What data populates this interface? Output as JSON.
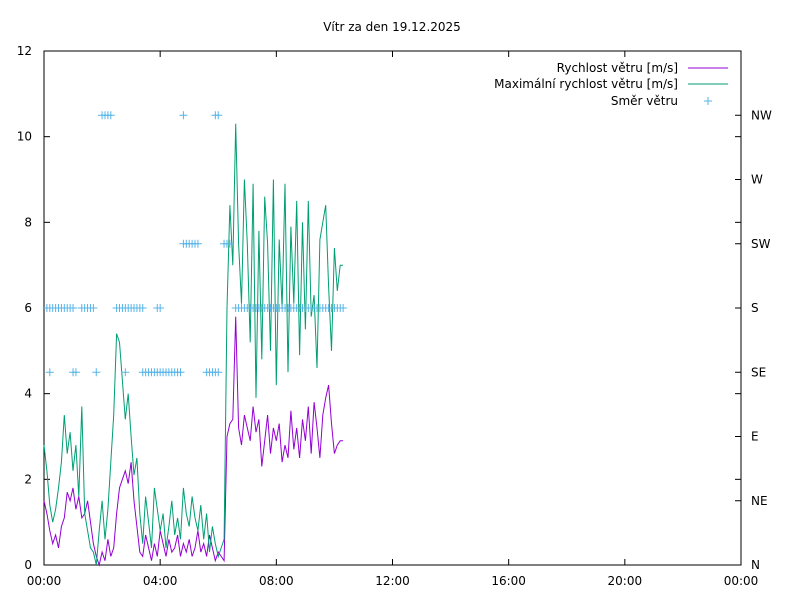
{
  "chart_data": {
    "type": "line",
    "title": "Vítr za den 19.12.2025",
    "x_ticks": [
      "00:00",
      "04:00",
      "08:00",
      "12:00",
      "16:00",
      "20:00",
      "00:00"
    ],
    "y_ticks": [
      "0",
      "2",
      "4",
      "6",
      "8",
      "10",
      "12"
    ],
    "y2_ticks": [
      "N",
      "NE",
      "E",
      "SE",
      "S",
      "SW",
      "W",
      "NW"
    ],
    "ylim": [
      0,
      12
    ],
    "xlim_hours": [
      0,
      24
    ],
    "grid": false,
    "legend_position": "top-right",
    "colors": {
      "speed": "#9400d3",
      "max": "#009e73",
      "dir": "#56b4e9"
    },
    "series": [
      {
        "name": "Rychlost větru [m/s]",
        "style": "line",
        "x": [
          0.0,
          0.1,
          0.2,
          0.3,
          0.4,
          0.5,
          0.6,
          0.7,
          0.8,
          0.9,
          1.0,
          1.1,
          1.2,
          1.3,
          1.4,
          1.5,
          1.6,
          1.7,
          1.8,
          1.9,
          2.0,
          2.1,
          2.2,
          2.3,
          2.4,
          2.5,
          2.6,
          2.7,
          2.8,
          2.9,
          3.0,
          3.1,
          3.2,
          3.3,
          3.4,
          3.5,
          3.6,
          3.7,
          3.8,
          3.9,
          4.0,
          4.1,
          4.2,
          4.3,
          4.4,
          4.5,
          4.6,
          4.7,
          4.8,
          4.9,
          5.0,
          5.1,
          5.2,
          5.3,
          5.4,
          5.5,
          5.6,
          5.7,
          5.8,
          5.9,
          6.0,
          6.1,
          6.2,
          6.3,
          6.4,
          6.5,
          6.6,
          6.7,
          6.8,
          6.9,
          7.0,
          7.1,
          7.2,
          7.3,
          7.4,
          7.5,
          7.6,
          7.7,
          7.8,
          7.9,
          8.0,
          8.1,
          8.2,
          8.3,
          8.4,
          8.5,
          8.6,
          8.7,
          8.8,
          8.9,
          9.0,
          9.1,
          9.2,
          9.3,
          9.4,
          9.5,
          9.6,
          9.7,
          9.8,
          9.9,
          10.0,
          10.1,
          10.2,
          10.3
        ],
        "values": [
          1.5,
          1.2,
          0.8,
          0.5,
          0.7,
          0.4,
          0.9,
          1.1,
          1.7,
          1.5,
          1.8,
          1.3,
          1.6,
          1.1,
          1.2,
          1.5,
          1.0,
          0.5,
          0.2,
          0.0,
          0.3,
          0.1,
          0.6,
          0.2,
          0.4,
          1.2,
          1.8,
          2.0,
          2.2,
          1.9,
          2.4,
          1.5,
          0.9,
          0.3,
          0.2,
          0.7,
          0.4,
          0.1,
          0.5,
          0.2,
          0.8,
          0.5,
          0.2,
          0.6,
          0.3,
          0.4,
          0.7,
          0.2,
          0.5,
          0.3,
          0.6,
          0.2,
          0.4,
          0.8,
          0.3,
          0.5,
          0.2,
          0.7,
          0.4,
          0.1,
          0.3,
          0.2,
          0.1,
          3.0,
          3.3,
          3.4,
          5.8,
          3.2,
          2.8,
          3.5,
          3.2,
          2.9,
          3.7,
          3.1,
          3.4,
          2.3,
          2.9,
          3.5,
          2.6,
          3.2,
          2.9,
          3.3,
          2.4,
          2.8,
          2.5,
          3.6,
          2.7,
          3.2,
          2.5,
          3.4,
          2.9,
          3.7,
          2.6,
          3.8,
          3.2,
          2.5,
          3.5,
          3.9,
          4.2,
          3.3,
          2.6,
          2.8,
          2.9,
          2.9
        ]
      },
      {
        "name": "Maximální rychlost větru [m/s]",
        "style": "line",
        "x": [
          0.0,
          0.1,
          0.2,
          0.3,
          0.4,
          0.5,
          0.6,
          0.7,
          0.8,
          0.9,
          1.0,
          1.1,
          1.2,
          1.3,
          1.4,
          1.5,
          1.6,
          1.7,
          1.8,
          1.9,
          2.0,
          2.1,
          2.2,
          2.3,
          2.4,
          2.5,
          2.6,
          2.7,
          2.8,
          2.9,
          3.0,
          3.1,
          3.2,
          3.3,
          3.4,
          3.5,
          3.6,
          3.7,
          3.8,
          3.9,
          4.0,
          4.1,
          4.2,
          4.3,
          4.4,
          4.5,
          4.6,
          4.7,
          4.8,
          4.9,
          5.0,
          5.1,
          5.2,
          5.3,
          5.4,
          5.5,
          5.6,
          5.7,
          5.8,
          5.9,
          6.0,
          6.1,
          6.2,
          6.3,
          6.4,
          6.5,
          6.6,
          6.7,
          6.8,
          6.9,
          7.0,
          7.1,
          7.2,
          7.3,
          7.4,
          7.5,
          7.6,
          7.7,
          7.8,
          7.9,
          8.0,
          8.1,
          8.2,
          8.3,
          8.4,
          8.5,
          8.6,
          8.7,
          8.8,
          8.9,
          9.0,
          9.1,
          9.2,
          9.3,
          9.4,
          9.5,
          9.6,
          9.7,
          9.8,
          9.9,
          10.0,
          10.1,
          10.2,
          10.3
        ],
        "values": [
          2.8,
          2.2,
          1.4,
          1.0,
          1.3,
          1.8,
          2.4,
          3.5,
          2.6,
          3.1,
          2.2,
          2.8,
          1.6,
          3.7,
          1.2,
          0.8,
          0.4,
          0.3,
          0.0,
          0.8,
          1.5,
          0.6,
          1.3,
          2.4,
          3.5,
          5.4,
          5.2,
          4.3,
          3.4,
          4.0,
          3.0,
          2.1,
          2.5,
          1.2,
          0.5,
          1.6,
          1.0,
          0.4,
          1.8,
          1.3,
          0.8,
          1.2,
          0.4,
          0.9,
          1.5,
          0.7,
          1.1,
          0.6,
          1.8,
          1.2,
          0.9,
          1.6,
          1.1,
          0.8,
          1.4,
          0.6,
          1.2,
          0.3,
          0.9,
          0.5,
          0.2,
          0.4,
          0.6,
          6.0,
          8.4,
          7.0,
          10.3,
          7.5,
          6.1,
          9.0,
          7.5,
          5.2,
          8.9,
          3.9,
          7.8,
          4.8,
          8.6,
          7.5,
          5.0,
          9.0,
          4.2,
          7.6,
          6.0,
          8.9,
          4.5,
          7.9,
          6.1,
          8.5,
          4.9,
          8.0,
          5.5,
          8.5,
          5.8,
          6.3,
          4.6,
          7.6,
          8.0,
          8.4,
          6.5,
          5.0,
          7.4,
          6.4,
          7.0,
          7.0
        ]
      },
      {
        "name": "Směr větru",
        "style": "points",
        "x": [
          0.1,
          0.2,
          0.3,
          0.4,
          0.5,
          0.6,
          0.7,
          0.8,
          0.9,
          1.0,
          1.3,
          1.4,
          1.5,
          1.6,
          1.7,
          2.5,
          2.6,
          2.7,
          2.8,
          2.9,
          3.0,
          3.1,
          3.2,
          3.3,
          3.4,
          3.9,
          4.0,
          2.0,
          2.1,
          2.2,
          2.3,
          4.8,
          5.9,
          6.0,
          4.8,
          4.9,
          5.0,
          5.1,
          5.2,
          5.3,
          6.2,
          6.3,
          6.4,
          0.2,
          1.0,
          1.1,
          1.8,
          2.8,
          3.4,
          3.5,
          3.6,
          3.7,
          3.8,
          3.9,
          4.0,
          4.1,
          4.2,
          4.3,
          4.4,
          4.5,
          4.6,
          4.7,
          5.6,
          5.7,
          5.8,
          5.9,
          6.0,
          6.6,
          6.7,
          6.8,
          6.9,
          7.0,
          7.1,
          7.2,
          7.3,
          7.4,
          7.5,
          7.6,
          7.7,
          7.8,
          7.9,
          8.0,
          8.1,
          8.2,
          8.3,
          8.4,
          8.5,
          8.6,
          8.7,
          8.8,
          8.9,
          9.0,
          9.1,
          9.2,
          9.3,
          9.4,
          9.5,
          9.6,
          9.7,
          9.8,
          9.9,
          10.0,
          10.1,
          10.2,
          10.3
        ],
        "values": [
          "S",
          "S",
          "S",
          "S",
          "S",
          "S",
          "S",
          "S",
          "S",
          "S",
          "S",
          "S",
          "S",
          "S",
          "S",
          "S",
          "S",
          "S",
          "S",
          "S",
          "S",
          "S",
          "S",
          "S",
          "S",
          "S",
          "S",
          "NW",
          "NW",
          "NW",
          "NW",
          "NW",
          "NW",
          "NW",
          "SW",
          "SW",
          "SW",
          "SW",
          "SW",
          "SW",
          "SW",
          "SW",
          "SW",
          "SE",
          "SE",
          "SE",
          "SE",
          "SE",
          "SE",
          "SE",
          "SE",
          "SE",
          "SE",
          "SE",
          "SE",
          "SE",
          "SE",
          "SE",
          "SE",
          "SE",
          "SE",
          "SE",
          "SE",
          "SE",
          "SE",
          "SE",
          "SE",
          "S",
          "S",
          "S",
          "S",
          "S",
          "S",
          "S",
          "S",
          "S",
          "S",
          "S",
          "S",
          "S",
          "S",
          "S",
          "S",
          "S",
          "S",
          "S",
          "S",
          "S",
          "S",
          "S",
          "S",
          "S",
          "S",
          "S",
          "S",
          "S",
          "S",
          "S",
          "S",
          "S",
          "S",
          "S",
          "S",
          "S",
          "S"
        ]
      }
    ]
  }
}
